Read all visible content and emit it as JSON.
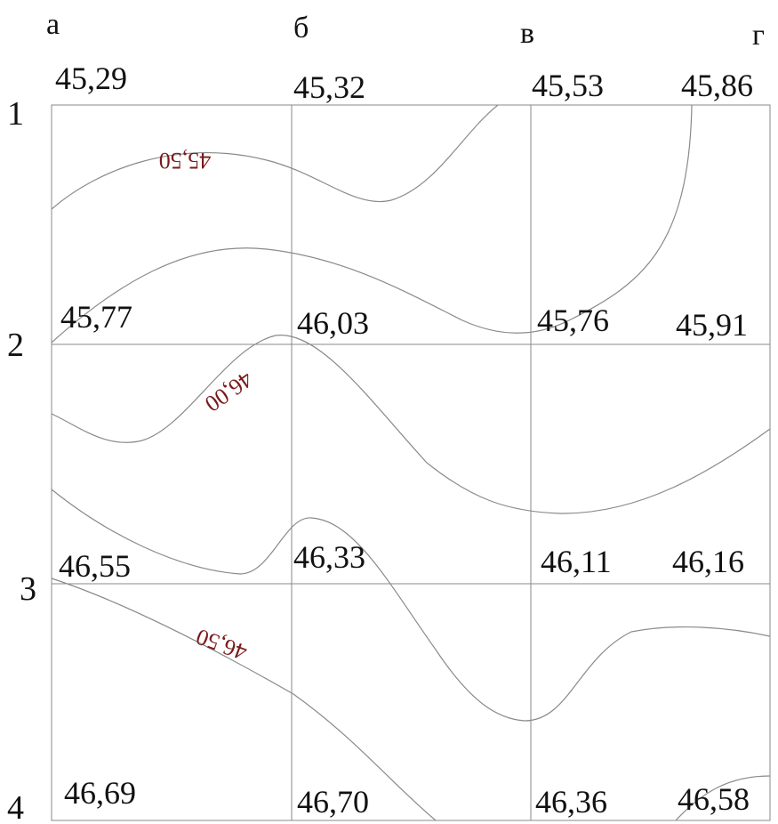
{
  "grid": {
    "columns": [
      "а",
      "б",
      "в",
      "г"
    ],
    "rows": [
      "1",
      "2",
      "3",
      "4"
    ],
    "elevations": [
      [
        "45,29",
        "45,32",
        "45,53",
        "45,86"
      ],
      [
        "45,77",
        "46,03",
        "45,76",
        "45,91"
      ],
      [
        "46,55",
        "46,33",
        "46,11",
        "46,16"
      ],
      [
        "46,69",
        "46,70",
        "46,36",
        "46,58"
      ]
    ]
  },
  "contours": [
    {
      "label": "45,50"
    },
    {
      "label": "46,00"
    },
    {
      "label": "46,50"
    }
  ],
  "colors": {
    "grid": "#888888",
    "contour": "#8a8a8a",
    "contour_label": "#7a1a1a",
    "text": "#111111"
  }
}
